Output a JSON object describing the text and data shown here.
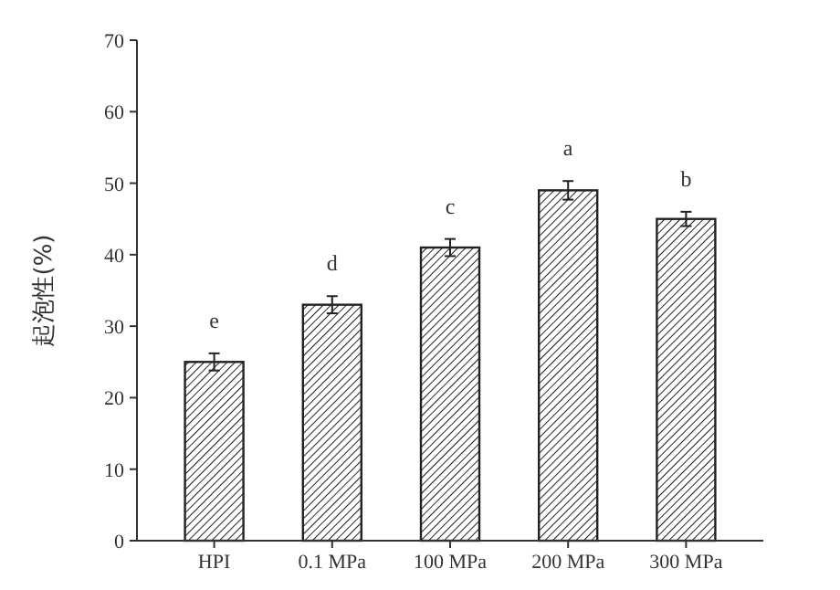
{
  "chart_data": {
    "type": "bar",
    "ylabel": "起泡性(%)",
    "categories": [
      "HPI",
      "0.1 MPa",
      "100 MPa",
      "200 MPa",
      "300 MPa"
    ],
    "values": [
      25,
      33,
      41,
      49,
      45
    ],
    "errors": [
      1.2,
      1.2,
      1.2,
      1.3,
      1.0
    ],
    "color": "#222222",
    "ylim": [
      0,
      70
    ],
    "yticks": [
      0,
      10,
      20,
      30,
      40,
      50,
      60,
      70
    ],
    "annotations": [
      {
        "text": "e",
        "x": "HPI",
        "y": 25
      },
      {
        "text": "d",
        "x": "0.1 MPa",
        "y": 33
      },
      {
        "text": "c",
        "x": "100 MPa",
        "y": 41
      },
      {
        "text": "a",
        "x": "200 MPa",
        "y": 49
      },
      {
        "text": "b",
        "x": "300 MPa",
        "y": 45
      }
    ]
  }
}
